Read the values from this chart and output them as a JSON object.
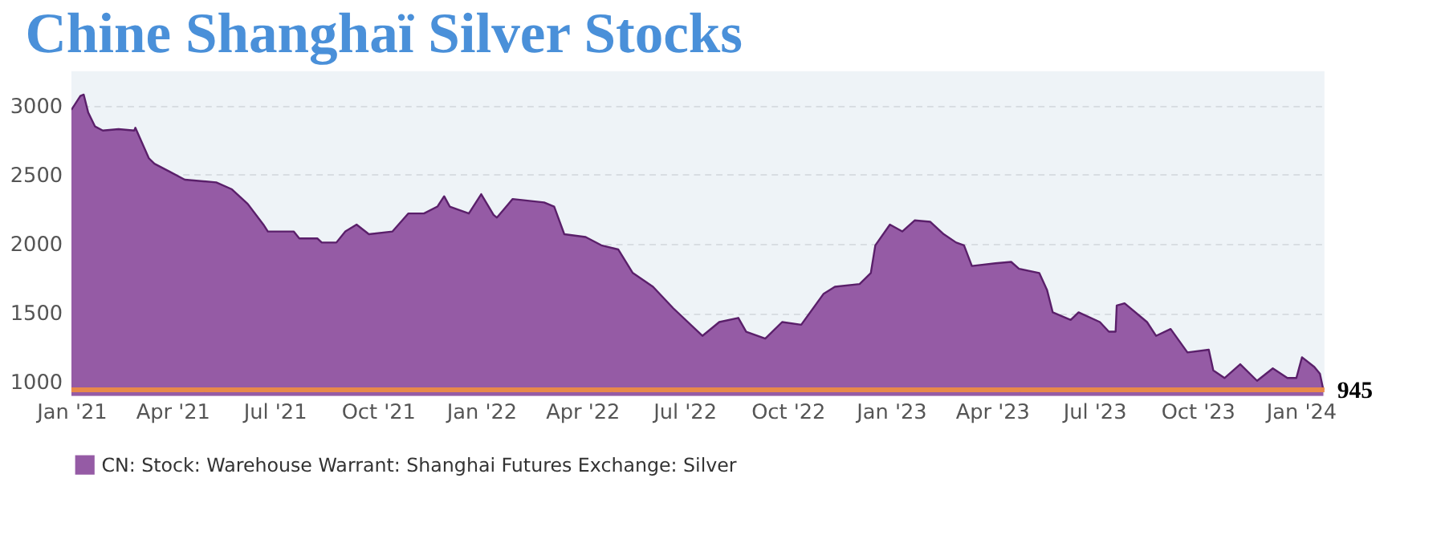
{
  "chart_data": {
    "type": "area",
    "title": "Chine  Shanghaï  Silver Stocks",
    "x": [
      "2021-01-01",
      "2021-01-09",
      "2021-01-12",
      "2021-01-16",
      "2021-01-22",
      "2021-01-29",
      "2021-02-12",
      "2021-02-26",
      "2021-02-27",
      "2021-03-11",
      "2021-03-16",
      "2021-03-29",
      "2021-04-12",
      "2021-05-10",
      "2021-05-24",
      "2021-06-07",
      "2021-06-21",
      "2021-06-25",
      "2021-07-18",
      "2021-07-23",
      "2021-08-08",
      "2021-08-12",
      "2021-08-25",
      "2021-09-02",
      "2021-09-12",
      "2021-09-23",
      "2021-10-14",
      "2021-10-28",
      "2021-11-11",
      "2021-11-23",
      "2021-11-29",
      "2021-12-04",
      "2021-12-21",
      "2022-01-01",
      "2022-01-12",
      "2022-01-15",
      "2022-01-29",
      "2022-02-26",
      "2022-03-07",
      "2022-03-16",
      "2022-04-04",
      "2022-04-18",
      "2022-05-03",
      "2022-05-16",
      "2022-06-03",
      "2022-06-21",
      "2022-07-17",
      "2022-08-01",
      "2022-08-18",
      "2022-08-25",
      "2022-09-11",
      "2022-09-26",
      "2022-10-13",
      "2022-11-02",
      "2022-11-12",
      "2022-12-04",
      "2022-12-14",
      "2022-12-18",
      "2022-12-31",
      "2023-01-11",
      "2023-01-22",
      "2023-02-05",
      "2023-02-17",
      "2023-02-28",
      "2023-03-07",
      "2023-03-14",
      "2023-04-04",
      "2023-04-18",
      "2023-04-25",
      "2023-05-13",
      "2023-05-20",
      "2023-05-25",
      "2023-06-10",
      "2023-06-17",
      "2023-07-06",
      "2023-07-14",
      "2023-07-20",
      "2023-07-21",
      "2023-07-28",
      "2023-08-17",
      "2023-08-25",
      "2023-09-07",
      "2023-09-22",
      "2023-10-11",
      "2023-10-15",
      "2023-10-25",
      "2023-11-08",
      "2023-11-23",
      "2023-12-07",
      "2023-12-20",
      "2023-12-28",
      "2024-01-02",
      "2024-01-13",
      "2024-01-18",
      "2024-01-21"
    ],
    "series": [
      {
        "name": "CN: Stock: Warehouse Warrant: Shanghai Futures Exchange: Silver",
        "color": "#955ba5",
        "values": [
          2970,
          3070,
          3080,
          2950,
          2850,
          2820,
          2830,
          2820,
          2840,
          2620,
          2580,
          2525,
          2465,
          2445,
          2395,
          2290,
          2140,
          2090,
          2090,
          2040,
          2040,
          2010,
          2010,
          2090,
          2140,
          2070,
          2090,
          2220,
          2220,
          2270,
          2345,
          2270,
          2220,
          2360,
          2210,
          2190,
          2325,
          2300,
          2270,
          2070,
          2050,
          1990,
          1960,
          1790,
          1690,
          1535,
          1335,
          1435,
          1465,
          1365,
          1315,
          1435,
          1415,
          1640,
          1690,
          1710,
          1790,
          1990,
          2140,
          2090,
          2170,
          2160,
          2070,
          2010,
          1990,
          1840,
          1860,
          1870,
          1820,
          1790,
          1665,
          1505,
          1450,
          1505,
          1435,
          1365,
          1365,
          1555,
          1570,
          1435,
          1335,
          1385,
          1215,
          1235,
          1085,
          1030,
          1130,
          1010,
          1100,
          1030,
          1030,
          1180,
          1110,
          1060,
          945
        ]
      }
    ],
    "xlim": [
      "2021-01-01",
      "2024-01-22"
    ],
    "xticks": [
      {
        "value": "2021-01-01",
        "label": "Jan '21"
      },
      {
        "value": "2021-04-01",
        "label": "Apr '21"
      },
      {
        "value": "2021-07-01",
        "label": "Jul '21"
      },
      {
        "value": "2021-10-01",
        "label": "Oct '21"
      },
      {
        "value": "2022-01-01",
        "label": "Jan '22"
      },
      {
        "value": "2022-04-01",
        "label": "Apr '22"
      },
      {
        "value": "2022-07-01",
        "label": "Jul '22"
      },
      {
        "value": "2022-10-01",
        "label": "Oct '22"
      },
      {
        "value": "2023-01-01",
        "label": "Jan '23"
      },
      {
        "value": "2023-04-01",
        "label": "Apr '23"
      },
      {
        "value": "2023-07-01",
        "label": "Jul '23"
      },
      {
        "value": "2023-10-01",
        "label": "Oct '23"
      },
      {
        "value": "2024-01-01",
        "label": "Jan '24"
      }
    ],
    "ylim": [
      900,
      3250
    ],
    "yticks": [
      1000,
      1500,
      2000,
      2500,
      3000
    ],
    "grid": "y",
    "legend": "bottom",
    "ref_lines": [
      {
        "axis": "y",
        "value": 945,
        "label": "945",
        "color": "#e8894a"
      }
    ]
  }
}
